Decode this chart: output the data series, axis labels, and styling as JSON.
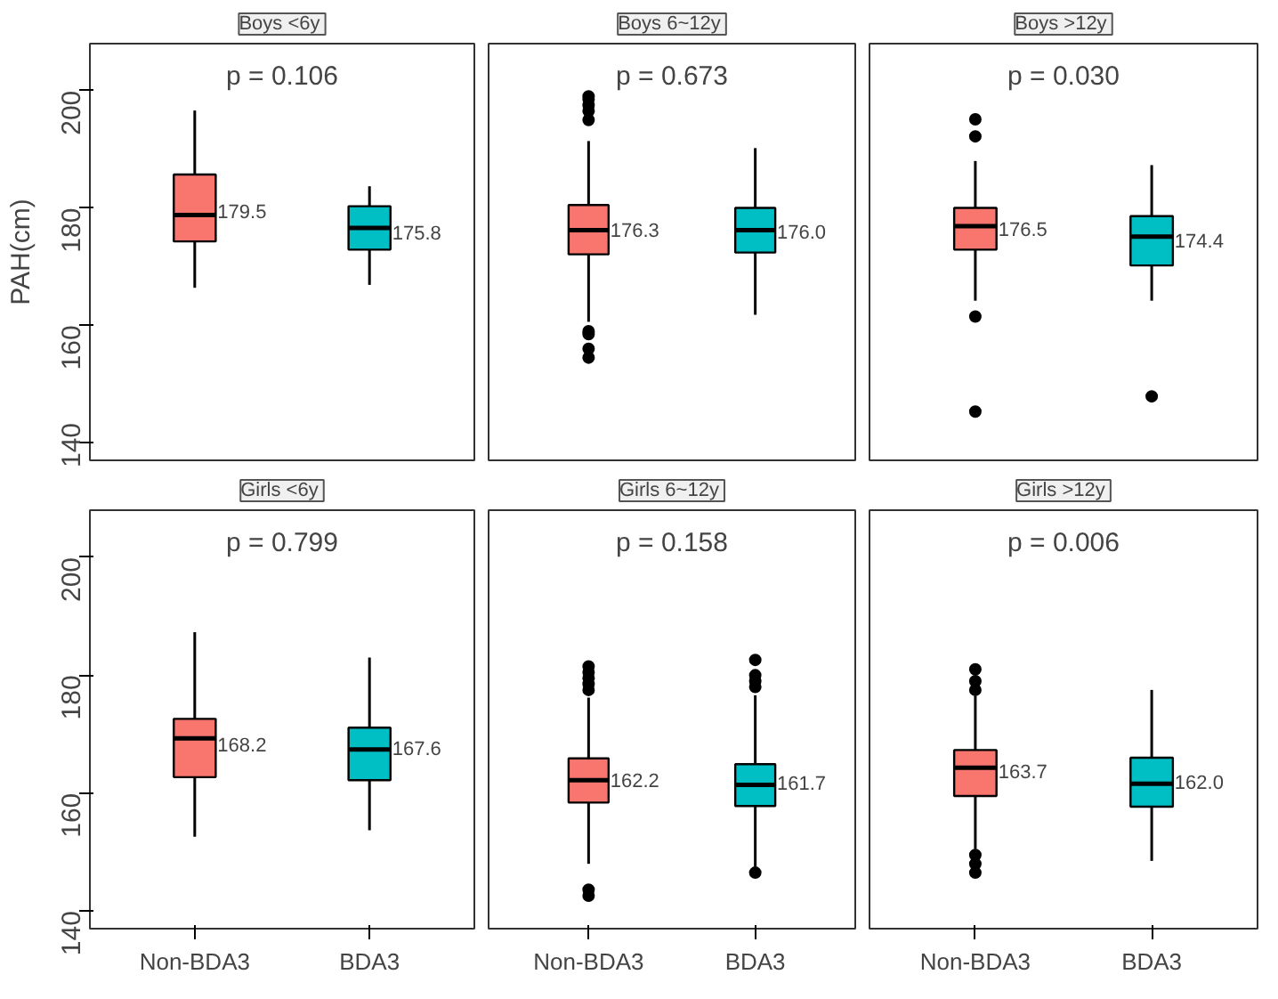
{
  "chart_data": [
    {
      "type": "box",
      "title": "Boys  <6y",
      "ylabel": "PAH(cm)",
      "categories": [
        "Non-BDA3",
        "BDA3"
      ],
      "colors": [
        "#f8766d",
        "#00bfc4"
      ],
      "ylim": [
        137,
        208
      ],
      "yticks": [
        140,
        160,
        180,
        200
      ],
      "grid": false,
      "tick_labels": "y",
      "boxes": [
        {
          "low": 166.4,
          "q1": 174.3,
          "median": 178.8,
          "q3": 185.7,
          "high": 196.6
        },
        {
          "low": 166.9,
          "q1": 172.9,
          "median": 176.6,
          "q3": 180.3,
          "high": 183.7
        }
      ],
      "annotations": [
        "p = 0.106",
        {
          "text": "179.5",
          "x": "Non-BDA3",
          "y": 179.5
        },
        {
          "text": "175.8",
          "x": "BDA3",
          "y": 175.8
        }
      ]
    },
    {
      "type": "box",
      "title": "Boys  6~12y",
      "categories": [
        "Non-BDA3",
        "BDA3"
      ],
      "colors": [
        "#f8766d",
        "#00bfc4"
      ],
      "ylim": [
        137,
        208
      ],
      "yticks": [
        140,
        160,
        180,
        200
      ],
      "grid": false,
      "tick_labels": false,
      "boxes": [
        {
          "low": 160.6,
          "q1": 172.1,
          "median": 176.2,
          "q3": 180.5,
          "high": 191.4,
          "outliers": [
            195,
            196.5,
            197.5,
            198.5,
            199,
            158.5,
            159,
            156,
            154.5
          ]
        },
        {
          "low": 161.8,
          "q1": 172.4,
          "median": 176.2,
          "q3": 180,
          "high": 190.2
        }
      ],
      "annotations": [
        "p = 0.673",
        {
          "text": "176.3",
          "x": "Non-BDA3",
          "y": 176.3
        },
        {
          "text": "176.0",
          "x": "BDA3",
          "y": 176.0
        }
      ]
    },
    {
      "type": "box",
      "title": "Boys  >12y",
      "categories": [
        "Non-BDA3",
        "BDA3"
      ],
      "colors": [
        "#f8766d",
        "#00bfc4"
      ],
      "ylim": [
        137,
        208
      ],
      "yticks": [
        140,
        160,
        180,
        200
      ],
      "grid": false,
      "tick_labels": false,
      "boxes": [
        {
          "low": 164.2,
          "q1": 172.9,
          "median": 176.9,
          "q3": 180,
          "high": 188,
          "outliers": [
            195.1,
            192.2,
            161.5,
            145.3
          ]
        },
        {
          "low": 164.2,
          "q1": 170.2,
          "median": 175.1,
          "q3": 178.6,
          "high": 187.3,
          "outliers": [
            147.9
          ]
        }
      ],
      "annotations": [
        "p = 0.030",
        {
          "text": "176.5",
          "x": "Non-BDA3",
          "y": 176.5
        },
        {
          "text": "174.4",
          "x": "BDA3",
          "y": 174.4
        }
      ]
    },
    {
      "type": "box",
      "title": "Girls  <6y",
      "categories": [
        "Non-BDA3",
        "BDA3"
      ],
      "colors": [
        "#f8766d",
        "#00bfc4"
      ],
      "ylim": [
        137,
        208
      ],
      "yticks": [
        140,
        160,
        180,
        200
      ],
      "grid": false,
      "boxes": [
        {
          "low": 152.6,
          "q1": 162.7,
          "median": 169.3,
          "q3": 172.6,
          "high": 187.3
        },
        {
          "low": 153.7,
          "q1": 162.2,
          "median": 167.4,
          "q3": 171.1,
          "high": 183
        }
      ],
      "annotations": [
        "p = 0.799",
        {
          "text": "168.2",
          "x": "Non-BDA3",
          "y": 168.2
        },
        {
          "text": "167.6",
          "x": "BDA3",
          "y": 167.6
        }
      ]
    },
    {
      "type": "box",
      "title": "Girls  6~12y",
      "categories": [
        "Non-BDA3",
        "BDA3"
      ],
      "colors": [
        "#f8766d",
        "#00bfc4"
      ],
      "ylim": [
        137,
        208
      ],
      "yticks": [
        140,
        160,
        180,
        200
      ],
      "grid": false,
      "tick_labels": "x",
      "boxes": [
        {
          "low": 148,
          "q1": 158.4,
          "median": 162.2,
          "q3": 165.9,
          "high": 176.2,
          "outliers": [
            177.5,
            178.5,
            179.5,
            180.5,
            181.5,
            143.6,
            142.6
          ]
        },
        {
          "low": 147.5,
          "q1": 157.8,
          "median": 161.4,
          "q3": 164.9,
          "high": 176.6,
          "outliers": [
            178,
            179,
            180,
            182.6,
            146.5
          ]
        }
      ],
      "annotations": [
        "p = 0.158",
        {
          "text": "162.2",
          "x": "Non-BDA3",
          "y": 162.2
        },
        {
          "text": "161.7",
          "x": "BDA3",
          "y": 161.7
        }
      ]
    },
    {
      "type": "box",
      "title": "Girls  >12y",
      "categories": [
        "Non-BDA3",
        "BDA3"
      ],
      "colors": [
        "#f8766d",
        "#00bfc4"
      ],
      "ylim": [
        137,
        208
      ],
      "yticks": [
        140,
        160,
        180,
        200
      ],
      "grid": false,
      "tick_labels": "x",
      "boxes": [
        {
          "low": 150.5,
          "q1": 159.5,
          "median": 164.3,
          "q3": 167.3,
          "high": 176.5,
          "outliers": [
            177.5,
            179,
            181,
            149.5,
            148,
            146.5
          ]
        },
        {
          "low": 148.5,
          "q1": 157.7,
          "median": 161.6,
          "q3": 166,
          "high": 177.5
        }
      ],
      "annotations": [
        "p = 0.006",
        {
          "text": "163.7",
          "x": "Non-BDA3",
          "y": 163.7
        },
        {
          "text": "162.0",
          "x": "BDA3",
          "y": 162.0
        }
      ]
    }
  ]
}
